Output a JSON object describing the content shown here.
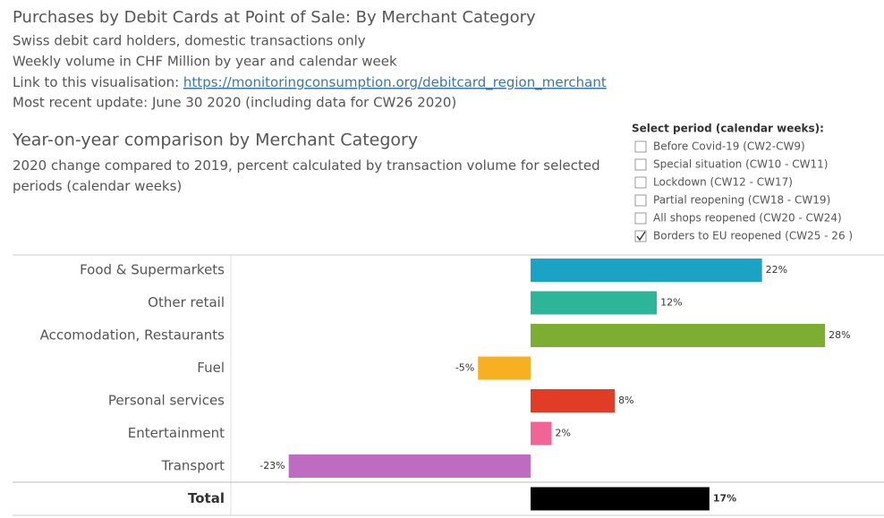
{
  "header": {
    "title": "Purchases by Debit Cards at Point of Sale: By Merchant Category",
    "lines": [
      "Swiss debit card holders, domestic transactions only",
      "Weekly volume in CHF Million by year and calendar week"
    ],
    "link_label": "Link to this visualisation:",
    "link_url": "https://monitoringconsumption.org/debitcard_region_merchant",
    "update": "Most recent update: June 30 2020  (including data for CW26 2020)"
  },
  "filter": {
    "title": "Select period (calendar weeks):",
    "options": [
      {
        "label": "Before Covid-19 (CW2-CW9)",
        "checked": false
      },
      {
        "label": "Special situation (CW10 - CW11)",
        "checked": false
      },
      {
        "label": "Lockdown (CW12 - CW17)",
        "checked": false
      },
      {
        "label": "Partial reopening (CW18 - CW19)",
        "checked": false
      },
      {
        "label": "All shops reopened (CW20 - CW24)",
        "checked": false
      },
      {
        "label": "Borders to EU reopened (CW25 - 26 )",
        "checked": true
      }
    ]
  },
  "chart_data": {
    "type": "hbar",
    "title": "Year-on-year comparison by Merchant Category",
    "subtitle": "2020 change compared to 2019, percent calculated by transaction volume for selected periods (calendar weeks)",
    "categories": [
      "Food & Supermarkets",
      "Other retail",
      "Accomodation, Restaurants",
      "Fuel",
      "Personal services",
      "Entertainment",
      "Transport",
      "Total"
    ],
    "values": [
      22,
      12,
      28,
      -5,
      8,
      2,
      -23,
      17
    ],
    "value_labels": [
      "22%",
      "12%",
      "28%",
      "-5%",
      "8%",
      "2%",
      "-23%",
      "17%"
    ],
    "colors": [
      "#1ba3c6",
      "#2cb598",
      "#7ead33",
      "#f8b023",
      "#e03c26",
      "#f06595",
      "#c06bc2",
      "#000000"
    ],
    "xlim": [
      -28.5,
      33.6
    ]
  }
}
